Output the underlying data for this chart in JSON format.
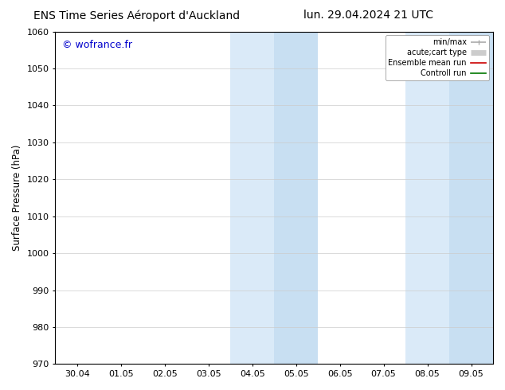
{
  "title_left": "ENS Time Series Aéroport d'Auckland",
  "title_right": "lun. 29.04.2024 21 UTC",
  "ylabel": "Surface Pressure (hPa)",
  "watermark": "© wofrance.fr",
  "watermark_color": "#0000cc",
  "ylim": [
    970,
    1060
  ],
  "yticks": [
    970,
    980,
    990,
    1000,
    1010,
    1020,
    1030,
    1040,
    1050,
    1060
  ],
  "xtick_labels": [
    "30.04",
    "01.05",
    "02.05",
    "03.05",
    "04.05",
    "05.05",
    "06.05",
    "07.05",
    "08.05",
    "09.05"
  ],
  "xtick_positions": [
    0,
    1,
    2,
    3,
    4,
    5,
    6,
    7,
    8,
    9
  ],
  "xlim": [
    -0.5,
    9.5
  ],
  "shaded_regions": [
    {
      "xmin": 3.5,
      "xmax": 4.5,
      "color": "#daeaf8"
    },
    {
      "xmin": 4.5,
      "xmax": 5.5,
      "color": "#c8dff2"
    },
    {
      "xmin": 7.5,
      "xmax": 8.5,
      "color": "#daeaf8"
    },
    {
      "xmin": 8.5,
      "xmax": 9.5,
      "color": "#c8dff2"
    }
  ],
  "legend_entries": [
    {
      "label": "min/max",
      "color": "#aaaaaa",
      "lw": 1.2
    },
    {
      "label": "acute;cart type",
      "color": "#cccccc",
      "lw": 5
    },
    {
      "label": "Ensemble mean run",
      "color": "#cc0000",
      "lw": 1.2
    },
    {
      "label": "Controll run",
      "color": "#007700",
      "lw": 1.2
    }
  ],
  "bg_color": "#ffffff",
  "plot_bg_color": "#ffffff",
  "grid_color": "#cccccc",
  "title_fontsize": 10,
  "tick_fontsize": 8,
  "ylabel_fontsize": 8.5,
  "watermark_fontsize": 9
}
